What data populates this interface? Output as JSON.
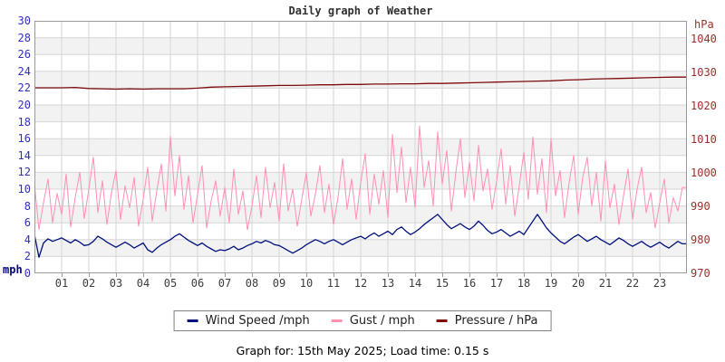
{
  "title": "Daily graph of Weather",
  "footer": "Graph for: 15th May 2025; Load time: 0.15 s",
  "colors": {
    "wind": "#00107e",
    "gust": "#ff8fb1",
    "pressure": "#7d0b0b",
    "left_axis_text": "#3030b8",
    "right_axis_text": "#9a2f28",
    "x_axis_text": "#3c3c3c",
    "grid_line": "#d6d6d6",
    "band_fill": "#f2f2f2",
    "plot_border": "#9a9a9a"
  },
  "axes": {
    "left_unit": "mph",
    "right_unit": "hPa",
    "left_ticks": [
      "30",
      "28",
      "26",
      "24",
      "22",
      "20",
      "18",
      "16",
      "14",
      "12",
      "10",
      "8",
      "6",
      "4",
      "2",
      "0"
    ],
    "right_ticks": [
      "1040",
      "1030",
      "1020",
      "1010",
      "1000",
      "990",
      "980",
      "970"
    ],
    "x_ticks": [
      "01",
      "02",
      "03",
      "04",
      "05",
      "06",
      "07",
      "08",
      "09",
      "10",
      "11",
      "12",
      "13",
      "14",
      "15",
      "16",
      "17",
      "18",
      "19",
      "20",
      "21",
      "22",
      "23"
    ]
  },
  "legend": [
    {
      "label": "Wind Speed /mph",
      "color": "#00107e"
    },
    {
      "label": "Gust / mph",
      "color": "#ff8fb1"
    },
    {
      "label": "Pressure / hPa",
      "color": "#7d0b0b"
    }
  ],
  "chart_data": {
    "type": "line",
    "title": "Daily graph of Weather",
    "x_axis": {
      "unit": "hours",
      "range": [
        0,
        24
      ],
      "tick_labels": [
        "01",
        "02",
        "03",
        "04",
        "05",
        "06",
        "07",
        "08",
        "09",
        "10",
        "11",
        "12",
        "13",
        "14",
        "15",
        "16",
        "17",
        "18",
        "19",
        "20",
        "21",
        "22",
        "23"
      ]
    },
    "left_axis": {
      "label": "mph",
      "range": [
        0,
        30
      ],
      "tick_step": 2
    },
    "right_axis": {
      "label": "hPa",
      "labeled_range": [
        970,
        1040
      ],
      "tick_step": 10
    },
    "grid": true,
    "legend_position": "bottom",
    "series": [
      {
        "name": "Gust / mph",
        "axis": "left",
        "unit": "mph",
        "color": "#ff8fb1",
        "interval_minutes": 10,
        "values": [
          10.6,
          5.2,
          8.4,
          11.2,
          6.0,
          9.5,
          7.0,
          11.8,
          5.5,
          9.0,
          12.0,
          6.5,
          10.0,
          13.8,
          7.2,
          11.0,
          5.8,
          9.6,
          12.2,
          6.4,
          10.4,
          7.8,
          11.4,
          5.6,
          8.8,
          12.6,
          6.2,
          9.8,
          13.0,
          7.4,
          16.3,
          9.2,
          14.0,
          7.6,
          11.6,
          6.0,
          9.4,
          12.8,
          5.4,
          8.6,
          11.0,
          6.8,
          10.2,
          6.0,
          12.4,
          7.0,
          9.8,
          5.2,
          8.0,
          11.6,
          6.6,
          12.6,
          7.8,
          10.8,
          6.2,
          13.0,
          7.4,
          10.0,
          5.6,
          8.8,
          12.0,
          6.8,
          9.4,
          12.8,
          7.2,
          10.6,
          5.8,
          9.0,
          13.6,
          7.6,
          11.2,
          6.4,
          10.8,
          14.2,
          7.0,
          11.8,
          8.2,
          12.2,
          6.6,
          16.5,
          9.6,
          15.0,
          8.4,
          12.6,
          7.8,
          17.5,
          10.2,
          13.4,
          8.0,
          16.8,
          10.6,
          14.6,
          7.4,
          12.0,
          16.0,
          9.0,
          13.2,
          8.6,
          15.2,
          9.8,
          12.4,
          7.6,
          11.0,
          14.8,
          8.2,
          12.8,
          6.8,
          10.4,
          14.4,
          8.8,
          16.2,
          9.4,
          13.6,
          7.2,
          16.0,
          9.2,
          12.2,
          6.6,
          10.8,
          14.0,
          7.0,
          11.4,
          13.8,
          8.0,
          12.0,
          6.2,
          13.4,
          7.8,
          10.6,
          5.8,
          9.2,
          12.4,
          6.4,
          10.0,
          12.6,
          7.2,
          9.6,
          5.4,
          8.4,
          11.2,
          6.0,
          9.0,
          7.4,
          10.2
        ]
      },
      {
        "name": "Wind Speed /mph",
        "axis": "left",
        "unit": "mph",
        "color": "#00107e",
        "interval_minutes": 10,
        "values": [
          4.6,
          1.9,
          3.6,
          4.1,
          3.8,
          4.0,
          4.2,
          3.9,
          3.6,
          4.0,
          3.7,
          3.3,
          3.4,
          3.8,
          4.4,
          4.1,
          3.7,
          3.4,
          3.1,
          3.4,
          3.7,
          3.4,
          3.0,
          3.3,
          3.6,
          2.8,
          2.5,
          3.0,
          3.4,
          3.7,
          4.0,
          4.4,
          4.7,
          4.3,
          3.9,
          3.6,
          3.3,
          3.6,
          3.2,
          2.9,
          2.6,
          2.8,
          2.7,
          2.9,
          3.2,
          2.8,
          3.0,
          3.3,
          3.5,
          3.8,
          3.6,
          3.9,
          3.7,
          3.4,
          3.3,
          3.0,
          2.7,
          2.4,
          2.7,
          3.0,
          3.4,
          3.7,
          4.0,
          3.8,
          3.5,
          3.8,
          4.0,
          3.7,
          3.4,
          3.7,
          4.0,
          4.2,
          4.4,
          4.1,
          4.5,
          4.8,
          4.4,
          4.7,
          5.0,
          4.6,
          5.2,
          5.5,
          5.0,
          4.6,
          4.9,
          5.3,
          5.8,
          6.2,
          6.6,
          7.0,
          6.4,
          5.8,
          5.3,
          5.6,
          5.9,
          5.5,
          5.2,
          5.6,
          6.2,
          5.7,
          5.1,
          4.7,
          4.9,
          5.2,
          4.8,
          4.4,
          4.7,
          5.0,
          4.6,
          5.4,
          6.2,
          7.0,
          6.2,
          5.4,
          4.8,
          4.3,
          3.8,
          3.5,
          3.9,
          4.3,
          4.6,
          4.2,
          3.8,
          4.1,
          4.4,
          4.0,
          3.7,
          3.4,
          3.8,
          4.2,
          3.9,
          3.5,
          3.2,
          3.5,
          3.8,
          3.4,
          3.1,
          3.4,
          3.7,
          3.3,
          3.0,
          3.4,
          3.8,
          3.5
        ]
      },
      {
        "name": "Pressure / hPa",
        "axis": "right",
        "unit": "hPa",
        "color": "#7d0b0b",
        "interval_minutes": 30,
        "values": [
          1025.4,
          1025.4,
          1025.4,
          1025.5,
          1025.2,
          1025.1,
          1025.0,
          1025.1,
          1025.0,
          1025.1,
          1025.1,
          1025.1,
          1025.3,
          1025.6,
          1025.7,
          1025.8,
          1025.9,
          1026.0,
          1026.1,
          1026.1,
          1026.2,
          1026.3,
          1026.3,
          1026.4,
          1026.4,
          1026.5,
          1026.5,
          1026.6,
          1026.6,
          1026.7,
          1026.7,
          1026.8,
          1026.9,
          1027.0,
          1027.1,
          1027.2,
          1027.3,
          1027.4,
          1027.5,
          1027.7,
          1027.8,
          1028.0,
          1028.1,
          1028.2,
          1028.3,
          1028.4,
          1028.5,
          1028.6,
          1028.6
        ]
      }
    ]
  }
}
